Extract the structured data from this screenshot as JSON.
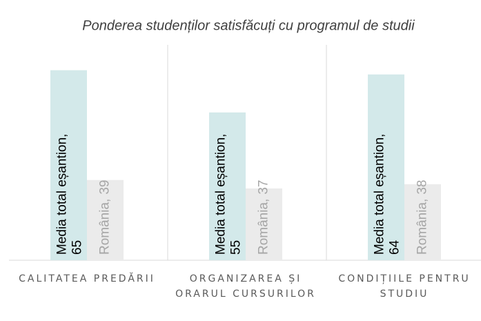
{
  "chart_data": {
    "type": "bar",
    "title": "Ponderea studenților satisfăcuți cu programul de studii",
    "categories": [
      "CALITATEA PREDĂRII",
      "ORGANIZAREA ȘI ORARUL CURSURILOR",
      "CONDIȚIILE PENTRU STUDIU"
    ],
    "series": [
      {
        "name": "Media total eșantion",
        "color": "#d3e9ea",
        "label_color": "#000000",
        "values": [
          65,
          55,
          64
        ]
      },
      {
        "name": "România",
        "color": "#ebebeb",
        "label_color": "#a6a6a6",
        "values": [
          39,
          37,
          38
        ]
      }
    ],
    "data_label_separator": ",",
    "ylim": [
      20,
      71
    ]
  }
}
